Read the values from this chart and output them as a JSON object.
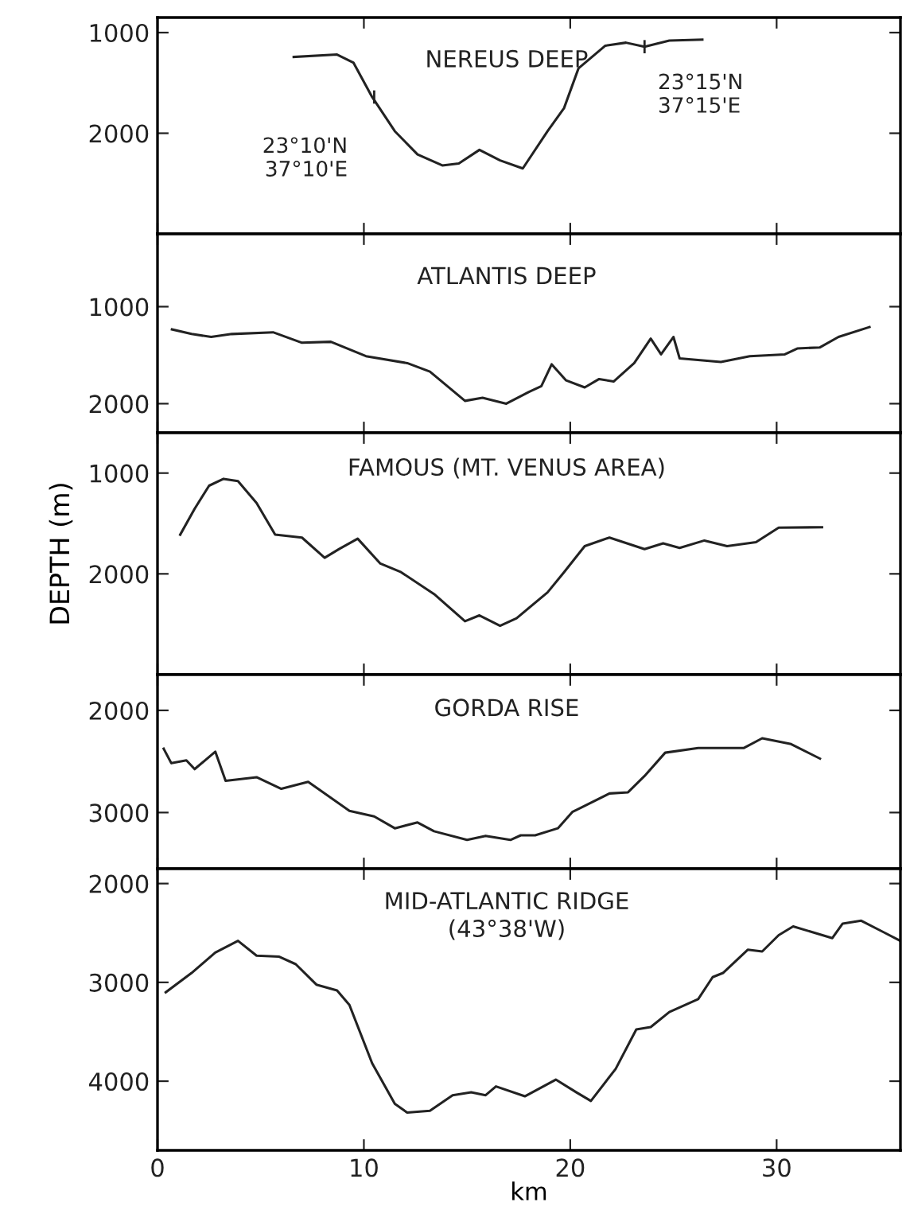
{
  "chart_data": [
    {
      "type": "line",
      "title": "NEREUS DEEP",
      "xlim": [
        0,
        36
      ],
      "xticks": [
        0,
        10,
        20,
        30
      ],
      "ylim": [
        3000,
        850
      ],
      "yticks": [
        1000,
        2000
      ],
      "tick_labels": "y",
      "grid": false,
      "annotations": [
        {
          "text": "23°10'N\n37°10'E",
          "x": 10.5,
          "y": 1640
        },
        {
          "text": "23°15'N\n37°15'E",
          "x": 23.6,
          "y": 1140
        }
      ],
      "series": [
        {
          "color": "#222222",
          "x": [
            6.6,
            8.7,
            9.5,
            10.4,
            11.5,
            12.6,
            13.8,
            14.6,
            15.6,
            16.6,
            17.7,
            18.9,
            19.7,
            20.4,
            21.7,
            22.7,
            23.6,
            24.8,
            26.4
          ],
          "values": [
            1242,
            1218,
            1300,
            1640,
            1980,
            2210,
            2320,
            2300,
            2165,
            2270,
            2350,
            1980,
            1750,
            1355,
            1130,
            1100,
            1140,
            1080,
            1070
          ]
        }
      ]
    },
    {
      "type": "line",
      "title": "ATLANTIS DEEP",
      "xlim": [
        0,
        36
      ],
      "xticks": [
        0,
        10,
        20,
        30
      ],
      "ylim": [
        2300,
        250
      ],
      "yticks": [
        1000,
        2000
      ],
      "tick_labels": "y",
      "grid": false,
      "series": [
        {
          "color": "#222222",
          "x": [
            0.7,
            1.65,
            2.6,
            3.6,
            5.6,
            7.0,
            8.4,
            10.1,
            12.1,
            13.2,
            14.9,
            15.75,
            16.9,
            18.0,
            18.6,
            19.1,
            19.8,
            20.7,
            21.4,
            22.1,
            23.1,
            23.9,
            24.4,
            25.0,
            25.3,
            27.3,
            28.7,
            30.4,
            31.0,
            32.1,
            33.0,
            34.5
          ],
          "values": [
            1234,
            1282,
            1312,
            1282,
            1264,
            1372,
            1362,
            1510,
            1582,
            1670,
            1971,
            1940,
            2000,
            1878,
            1820,
            1594,
            1760,
            1833,
            1746,
            1772,
            1582,
            1330,
            1492,
            1312,
            1533,
            1570,
            1510,
            1492,
            1431,
            1420,
            1312,
            1210
          ]
        }
      ]
    },
    {
      "type": "line",
      "title": "FAMOUS (MT. VENUS AREA)",
      "ylabel": "DEPTH (m)",
      "xlim": [
        0,
        36
      ],
      "xticks": [
        0,
        10,
        20,
        30
      ],
      "ylim": [
        3000,
        600
      ],
      "yticks": [
        1000,
        2000
      ],
      "tick_labels": "y",
      "grid": false,
      "series": [
        {
          "color": "#222222",
          "x": [
            1.1,
            1.8,
            2.5,
            3.2,
            3.9,
            4.8,
            5.7,
            7.0,
            8.1,
            8.8,
            9.7,
            10.8,
            11.8,
            13.4,
            14.9,
            15.6,
            16.6,
            17.4,
            18.9,
            19.7,
            20.7,
            21.9,
            23.6,
            24.5,
            25.3,
            26.5,
            27.6,
            29.0,
            30.1,
            32.2
          ],
          "values": [
            1611,
            1354,
            1125,
            1057,
            1080,
            1297,
            1611,
            1640,
            1840,
            1754,
            1651,
            1898,
            1983,
            2200,
            2470,
            2412,
            2515,
            2440,
            2184,
            1983,
            1725,
            1640,
            1754,
            1697,
            1743,
            1669,
            1725,
            1686,
            1542,
            1537
          ]
        }
      ]
    },
    {
      "type": "line",
      "title": "GORDA RISE",
      "xlim": [
        0,
        36
      ],
      "xticks": [
        0,
        10,
        20,
        30
      ],
      "ylim": [
        3550,
        1650
      ],
      "yticks": [
        2000,
        3000
      ],
      "tick_labels": "y",
      "grid": false,
      "series": [
        {
          "color": "#222222",
          "x": [
            0.3,
            0.67,
            1.4,
            1.8,
            2.8,
            3.3,
            4.8,
            6.0,
            7.3,
            9.3,
            10.5,
            11.5,
            12.6,
            13.4,
            15.0,
            15.9,
            17.1,
            17.6,
            18.3,
            19.4,
            20.1,
            21.9,
            22.8,
            23.6,
            24.6,
            26.2,
            28.4,
            29.3,
            30.7,
            32.1
          ],
          "values": [
            2375,
            2517,
            2489,
            2575,
            2404,
            2689,
            2654,
            2768,
            2700,
            2983,
            3038,
            3154,
            3097,
            3183,
            3268,
            3228,
            3268,
            3223,
            3223,
            3154,
            2995,
            2813,
            2802,
            2642,
            2414,
            2369,
            2369,
            2273,
            2330,
            2472
          ]
        }
      ]
    },
    {
      "type": "line",
      "title": "MID-ATLANTIC RIDGE\n(43°38'W)",
      "xlabel": "km",
      "xlim": [
        0,
        36
      ],
      "xticks": [
        0,
        10,
        20,
        30
      ],
      "ylim": [
        4700,
        1850
      ],
      "yticks": [
        2000,
        3000,
        4000
      ],
      "grid": false,
      "series": [
        {
          "color": "#222222",
          "x": [
            0.4,
            1.65,
            2.8,
            3.9,
            4.8,
            5.9,
            6.7,
            7.7,
            8.7,
            9.3,
            10.4,
            11.5,
            12.1,
            13.2,
            14.3,
            15.2,
            15.9,
            16.4,
            17.8,
            19.3,
            20.3,
            21.0,
            22.2,
            23.2,
            23.9,
            24.8,
            26.2,
            26.9,
            27.4,
            28.6,
            29.3,
            30.1,
            30.8,
            32.7,
            33.2,
            34.1,
            35.2,
            36.0
          ],
          "values": [
            3100,
            2905,
            2698,
            2580,
            2729,
            2740,
            2816,
            3023,
            3081,
            3229,
            3818,
            4229,
            4318,
            4300,
            4142,
            4113,
            4142,
            4053,
            4153,
            3984,
            4113,
            4200,
            3876,
            3476,
            3452,
            3300,
            3169,
            2947,
            2905,
            2670,
            2687,
            2522,
            2434,
            2552,
            2405,
            2376,
            2494,
            2580
          ]
        }
      ]
    }
  ]
}
